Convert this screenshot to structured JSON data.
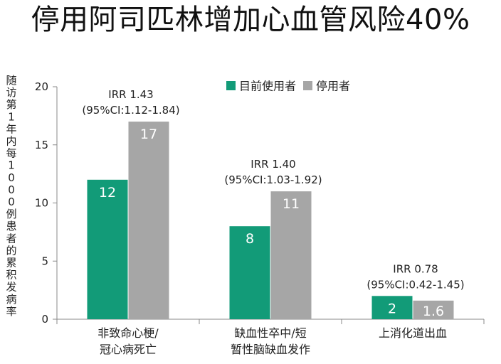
{
  "chart_data": {
    "type": "bar",
    "title": "停用阿司匹林增加心血管风险40%",
    "ylabel": "随访第1年内每1000例患者的累积发病率",
    "ylim": [
      0,
      20
    ],
    "yticks": [
      0,
      5,
      10,
      15,
      20
    ],
    "categories": [
      {
        "lines": [
          "非致命心梗/",
          "冠心病死亡"
        ]
      },
      {
        "lines": [
          "缺血性卒中/短",
          "暂性脑缺血发作"
        ]
      },
      {
        "lines": [
          "上消化道出血"
        ]
      }
    ],
    "series": [
      {
        "name": "目前使用者",
        "color": "#129b78",
        "values": [
          12,
          8,
          2
        ],
        "labels": [
          "12",
          "8",
          "2"
        ]
      },
      {
        "name": "停用者",
        "color": "#a6a6a6",
        "values": [
          17,
          11,
          1.6
        ],
        "labels": [
          "17",
          "11",
          "1.6"
        ]
      }
    ],
    "annotations": [
      {
        "line1": "IRR 1.43",
        "line2": "(95%CI:1.12-1.84)"
      },
      {
        "line1": "IRR 1.40",
        "line2": "(95%CI:1.03-1.92)"
      },
      {
        "line1": "IRR 0.78",
        "line2": "(95%CI:0.42-1.45)"
      }
    ],
    "legend_position": "top-right",
    "grid": false
  }
}
